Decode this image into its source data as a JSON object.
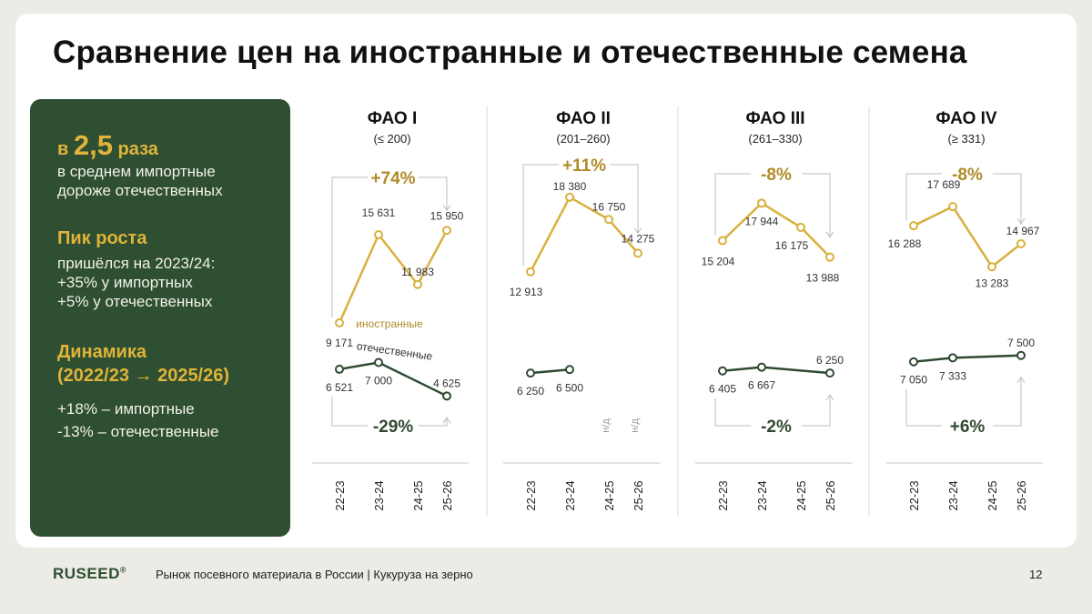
{
  "title": "Сравнение цен на иностранные и отечественные семена",
  "panel": {
    "stat_prefix": "в",
    "stat_value": "2,5",
    "stat_suffix": "раза",
    "stat_line1": "в среднем импортные",
    "stat_line2": "дороже отечественных",
    "peak_heading": "Пик роста",
    "peak_line1": "пришёлся на 2023/24:",
    "peak_line2": "+35% у импортных",
    "peak_line3": "+5% у отечественных",
    "dyn_heading1": "Динамика",
    "dyn_heading2": "(2022/23 → 2025/26)",
    "dyn_line1": "+18% – импортные",
    "dyn_line2": "-13% – отечественные"
  },
  "footer": {
    "brand": "RUSEED",
    "brand_mark": "®",
    "text": "Рынок посевного материала в России  |  Кукуруза на зерно",
    "page": "12"
  },
  "colors": {
    "background": "#ecebe6",
    "card": "#ffffff",
    "panel": "#2e4f31",
    "accent_gold": "#e0b43a",
    "imported_line": "#d8b13e",
    "domestic_line": "#2f4a30",
    "change_imported_text": "#b08b28",
    "change_domestic_text": "#2f4a30",
    "divider": "#d9d9d4"
  },
  "chart_data": {
    "type": "line",
    "categories": [
      "22-23",
      "23-24",
      "24-25",
      "25-26"
    ],
    "series_labels": {
      "imported": "иностранные",
      "domestic": "отечественные"
    },
    "na_label": "н/д",
    "panels": [
      {
        "title": "ФАО I",
        "subtitle": "(≤ 200)",
        "imported": [
          9171,
          15631,
          11983,
          15950
        ],
        "imported_labels": [
          "9 171",
          "15 631",
          "11 983",
          "15 950"
        ],
        "domestic": [
          6521,
          7000,
          null,
          4625
        ],
        "domestic_labels": [
          "6 521",
          "7 000",
          "",
          "4 625"
        ],
        "imported_change": "+74%",
        "domestic_change": "-29%"
      },
      {
        "title": "ФАО II",
        "subtitle": "(201–260)",
        "imported": [
          12913,
          18380,
          16750,
          14275
        ],
        "imported_labels": [
          "12 913",
          "18 380",
          "16 750",
          "14 275"
        ],
        "domestic": [
          6250,
          6500,
          null,
          null
        ],
        "domestic_labels": [
          "6 250",
          "6 500",
          "н/д",
          "н/д"
        ],
        "imported_change": "+11%",
        "domestic_change": ""
      },
      {
        "title": "ФАО III",
        "subtitle": "(261–330)",
        "imported": [
          15204,
          17944,
          16175,
          13988
        ],
        "imported_labels": [
          "15 204",
          "17 944",
          "16 175",
          "13 988"
        ],
        "domestic": [
          6405,
          6667,
          null,
          6250
        ],
        "domestic_labels": [
          "6 405",
          "6 667",
          "",
          "6 250"
        ],
        "imported_change": "-8%",
        "domestic_change": "-2%"
      },
      {
        "title": "ФАО IV",
        "subtitle": "(≥ 331)",
        "imported": [
          16288,
          17689,
          13283,
          14967
        ],
        "imported_labels": [
          "16 288",
          "17 689",
          "13 283",
          "14 967"
        ],
        "domestic": [
          7050,
          7333,
          null,
          7500
        ],
        "domestic_labels": [
          "7 050",
          "7 333",
          "",
          "7 500"
        ],
        "imported_change": "-8%",
        "domestic_change": "+6%"
      }
    ]
  }
}
